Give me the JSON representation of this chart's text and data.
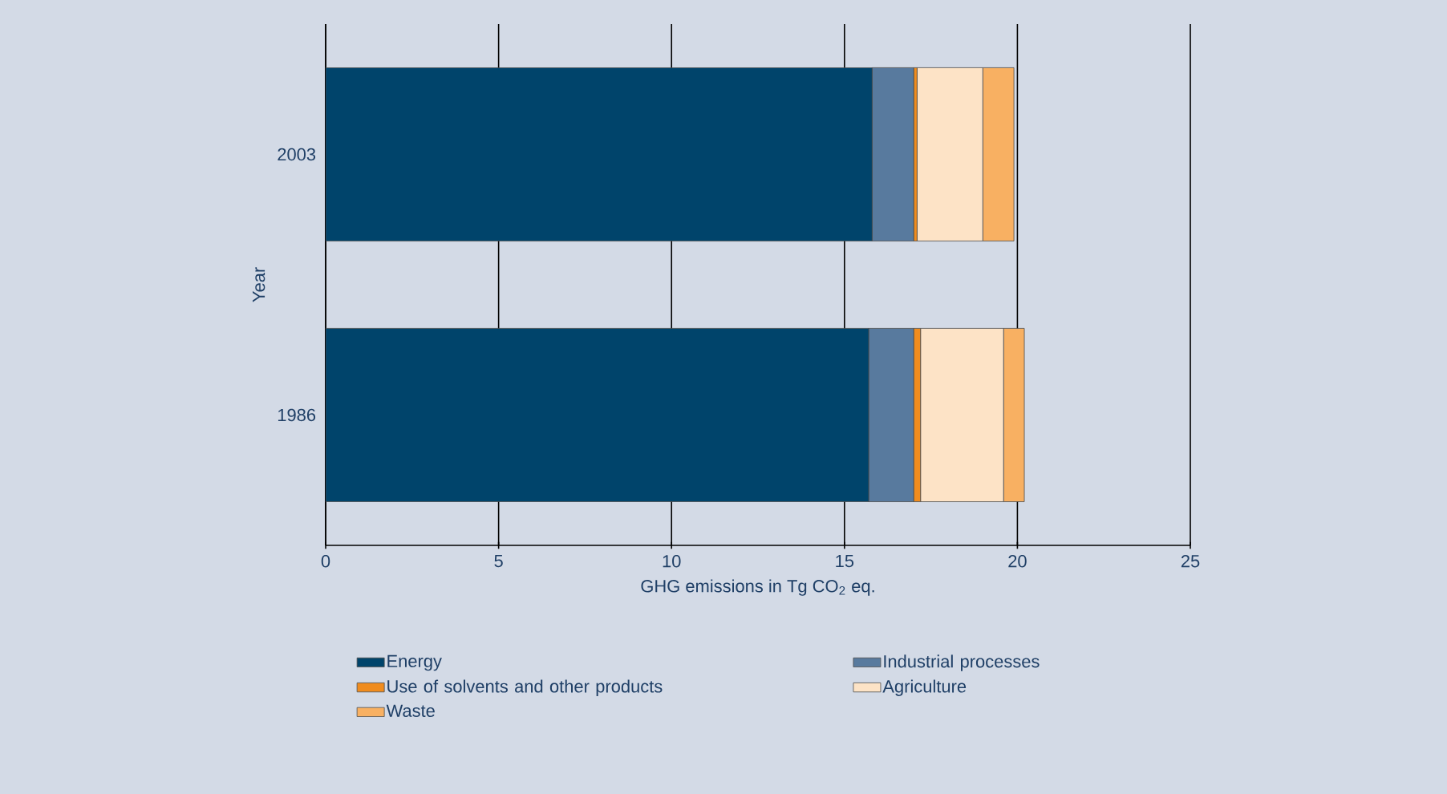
{
  "chart_data": {
    "type": "bar",
    "orientation": "horizontal",
    "stacked": true,
    "xlabel": "GHG emissions in Tg CO$_{2}$ eq.",
    "ylabel": "Year",
    "categories": [
      "2003",
      "1986"
    ],
    "series": [
      {
        "name": "Energy",
        "color": "#00446b",
        "values": [
          15.8,
          15.7
        ]
      },
      {
        "name": "Industrial processes",
        "color": "#587a9e",
        "values": [
          1.2,
          1.3
        ]
      },
      {
        "name": "Use of solvents and other products",
        "color": "#f08c1e",
        "values": [
          0.1,
          0.2
        ]
      },
      {
        "name": "Agriculture",
        "color": "#fde3c6",
        "values": [
          1.9,
          2.4
        ]
      },
      {
        "name": "Waste",
        "color": "#f8b062",
        "values": [
          0.9,
          0.6
        ]
      }
    ],
    "xlim": [
      0,
      25
    ],
    "xticks": [
      0,
      5,
      10,
      15,
      20,
      25
    ],
    "grid": "x",
    "legend": "bottom"
  }
}
